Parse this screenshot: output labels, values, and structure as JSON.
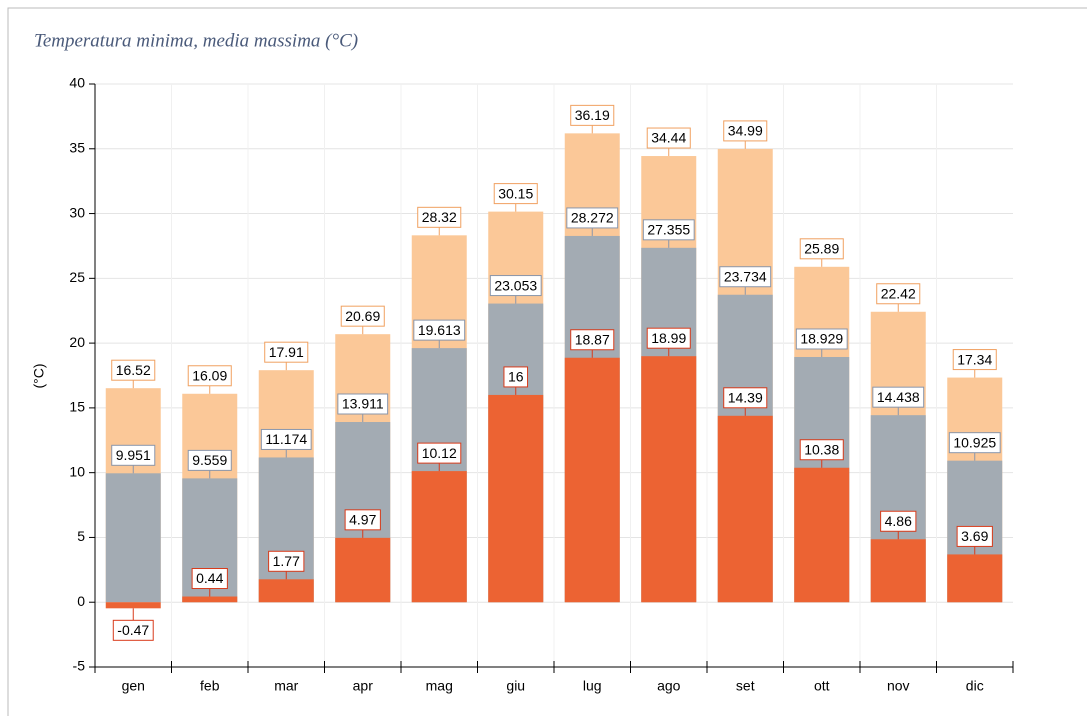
{
  "chart_data": {
    "type": "bar",
    "title": "Temperatura minima, media massima (°C)",
    "ylabel": "(°C)",
    "categories": [
      "gen",
      "feb",
      "mar",
      "apr",
      "mag",
      "giu",
      "lug",
      "ago",
      "set",
      "ott",
      "nov",
      "dic"
    ],
    "series": [
      {
        "color": "#fbc898",
        "values": [
          16.52,
          16.09,
          17.91,
          20.69,
          28.32,
          30.15,
          36.19,
          34.44,
          34.99,
          25.89,
          22.42,
          17.34
        ]
      },
      {
        "color": "#a3abb3",
        "values": [
          9.951,
          9.559,
          11.174,
          13.911,
          19.613,
          23.053,
          28.272,
          27.355,
          23.734,
          18.929,
          14.438,
          10.925
        ]
      },
      {
        "color": "#ec6333",
        "values": [
          -0.47,
          0.44,
          1.77,
          4.97,
          10.12,
          16,
          18.87,
          18.99,
          14.39,
          10.38,
          4.86,
          3.69
        ]
      }
    ],
    "ylim": [
      -5,
      40
    ],
    "yticks": [
      -5,
      0,
      5,
      10,
      15,
      20,
      25,
      30,
      35,
      40
    ],
    "grid": true
  }
}
